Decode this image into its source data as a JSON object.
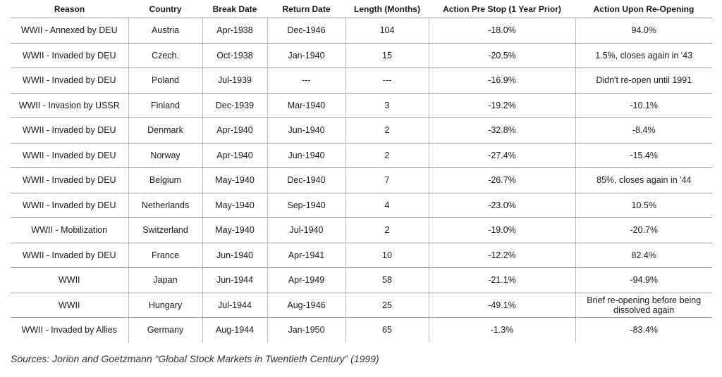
{
  "table": {
    "headers": [
      "Reason",
      "Country",
      "Break Date",
      "Return Date",
      "Length (Months)",
      "Action Pre Stop (1 Year Prior)",
      "Action Upon Re-Opening"
    ],
    "rows": [
      [
        "WWII - Annexed by DEU",
        "Austria",
        "Apr-1938",
        "Dec-1946",
        "104",
        "-18.0%",
        "94.0%"
      ],
      [
        "WWII - Invaded by DEU",
        "Czech.",
        "Oct-1938",
        "Jan-1940",
        "15",
        "-20.5%",
        "1.5%, closes again in '43"
      ],
      [
        "WWII - Invaded by DEU",
        "Poland",
        "Jul-1939",
        "---",
        "---",
        "-16.9%",
        "Didn't re-open until 1991"
      ],
      [
        "WWII - Invasion by USSR",
        "Finland",
        "Dec-1939",
        "Mar-1940",
        "3",
        "-19.2%",
        "-10.1%"
      ],
      [
        "WWII - Invaded by DEU",
        "Denmark",
        "Apr-1940",
        "Jun-1940",
        "2",
        "-32.8%",
        "-8.4%"
      ],
      [
        "WWII - Invaded by DEU",
        "Norway",
        "Apr-1940",
        "Jun-1940",
        "2",
        "-27.4%",
        "-15.4%"
      ],
      [
        "WWII - Invaded by DEU",
        "Belgium",
        "May-1940",
        "Dec-1940",
        "7",
        "-26.7%",
        "85%, closes again in '44"
      ],
      [
        "WWII - Invaded by DEU",
        "Netherlands",
        "May-1940",
        "Sep-1940",
        "4",
        "-23.0%",
        "10.5%"
      ],
      [
        "WWII - Mobilization",
        "Switzerland",
        "May-1940",
        "Jul-1940",
        "2",
        "-19.0%",
        "-20.7%"
      ],
      [
        "WWII - Invaded by DEU",
        "France",
        "Jun-1940",
        "Apr-1941",
        "10",
        "-12.2%",
        "82.4%"
      ],
      [
        "WWII",
        "Japan",
        "Jun-1944",
        "Apr-1949",
        "58",
        "-21.1%",
        "-94.9%"
      ],
      [
        "WWII",
        "Hungary",
        "Jul-1944",
        "Aug-1946",
        "25",
        "-49.1%",
        "Brief re-opening  before being dissolved again"
      ],
      [
        "WWII - Invaded by Allies",
        "Germany",
        "Aug-1944",
        "Jan-1950",
        "65",
        "-1.3%",
        "-83.4%"
      ]
    ]
  },
  "source": "Sources: Jorion and Goetzmann “Global Stock Markets in Twentieth Century” (1999)"
}
